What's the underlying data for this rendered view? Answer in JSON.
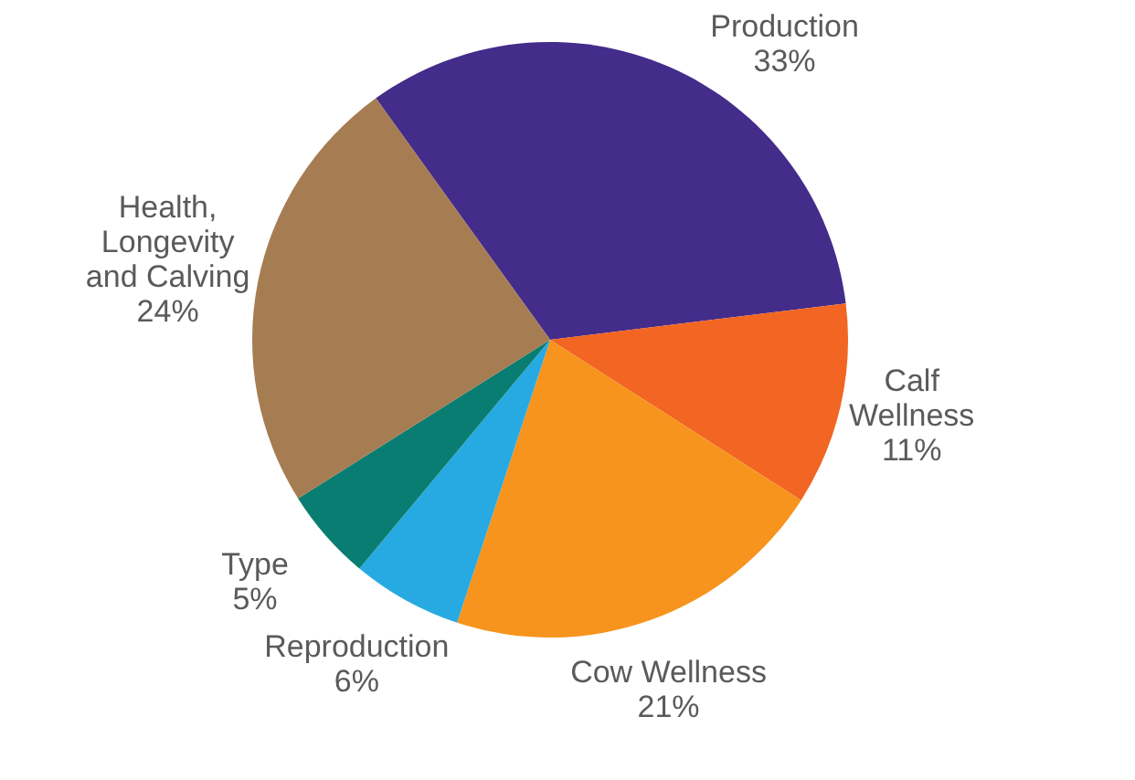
{
  "chart_data": {
    "type": "pie",
    "categories": [
      "Production",
      "Calf Wellness",
      "Cow Wellness",
      "Reproduction",
      "Type",
      "Health, Longevity and Calving"
    ],
    "values": [
      33,
      11,
      21,
      6,
      5,
      24
    ],
    "value_labels": [
      "33%",
      "11%",
      "21%",
      "6%",
      "5%",
      "24%"
    ],
    "colors": [
      "#432c8a",
      "#f26522",
      "#f7941d",
      "#27aae1",
      "#0a7d72",
      "#a67c52"
    ]
  }
}
